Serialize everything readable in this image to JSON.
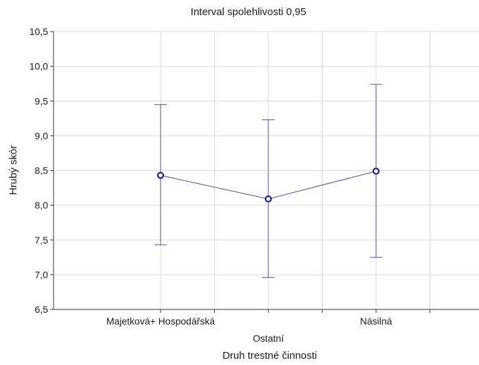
{
  "chart_data": {
    "type": "line",
    "title": "Interval spolehlivosti 0,95",
    "xlabel": "Druh trestné činnosti",
    "ylabel": "Hrubý skór",
    "categories": [
      "Majetková+ Hospodářská",
      "Ostatní",
      "Násilná"
    ],
    "series": [
      {
        "values": [
          8.43,
          8.09,
          8.49
        ],
        "ci_lower": [
          7.43,
          6.96,
          7.25
        ],
        "ci_upper": [
          9.45,
          9.23,
          9.74
        ]
      }
    ],
    "ylim": [
      6.5,
      10.5
    ],
    "yticks": [
      "6,5",
      "7,0",
      "7,5",
      "8,0",
      "8,5",
      "9,0",
      "9,5",
      "10,0",
      "10,5"
    ],
    "grid": true,
    "legend": "none",
    "colors": {
      "series": "#4a4ab0",
      "marker": "#1c1c9a",
      "grid": "#d9d9d9",
      "axis": "#333333"
    }
  }
}
